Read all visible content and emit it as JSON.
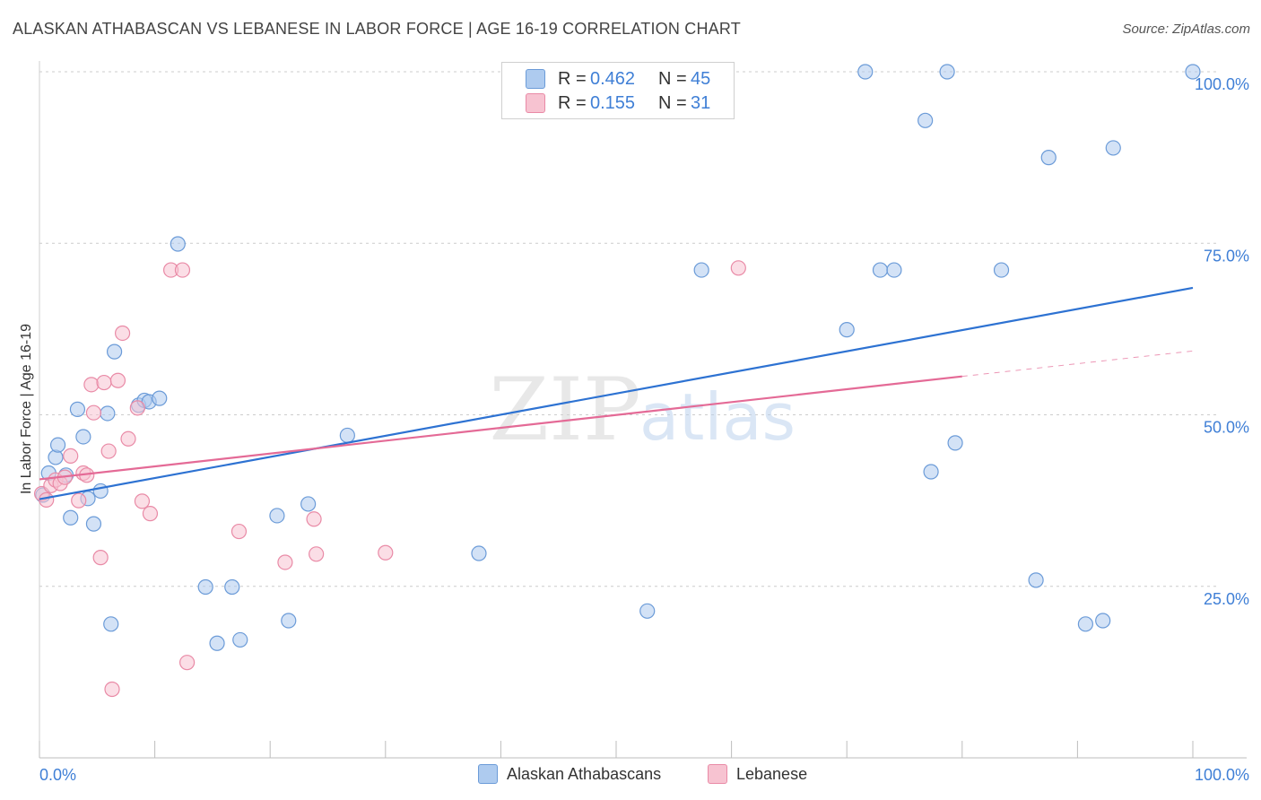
{
  "title": "ALASKAN ATHABASCAN VS LEBANESE IN LABOR FORCE | AGE 16-19 CORRELATION CHART",
  "source": "Source: ZipAtlas.com",
  "watermark_zip": "ZIP",
  "watermark_atlas": "atlas",
  "colors": {
    "blue_fill": "#aecbef",
    "blue_stroke": "#6b9bd8",
    "blue_line": "#2d72d2",
    "pink_fill": "#f7c3d1",
    "pink_stroke": "#e98aa6",
    "pink_line": "#e46a96",
    "value_text": "#3f7fd6",
    "grid": "#cccccc"
  },
  "legend_top": {
    "rows": [
      {
        "r_label": "R =",
        "r_value": "0.462",
        "n_label": "N =",
        "n_value": "45"
      },
      {
        "r_label": "R =",
        "r_value": "0.155",
        "n_label": "N =",
        "n_value": "31"
      }
    ]
  },
  "legend_bottom": {
    "series1": "Alaskan Athabascans",
    "series2": "Lebanese"
  },
  "chart_data": {
    "type": "scatter",
    "title": "ALASKAN ATHABASCAN VS LEBANESE IN LABOR FORCE | AGE 16-19 CORRELATION CHART",
    "xlabel": "",
    "ylabel": "In Labor Force | Age 16-19",
    "xlim": [
      0,
      100
    ],
    "ylim": [
      0,
      100
    ],
    "x_tick_labels": [
      "0.0%",
      "100.0%"
    ],
    "y_tick_labels": [
      "25.0%",
      "50.0%",
      "75.0%",
      "100.0%"
    ],
    "y_ticks": [
      25,
      50,
      75,
      100
    ],
    "series": [
      {
        "name": "Alaskan Athabascans",
        "R": 0.462,
        "N": 45,
        "trend": {
          "x0": 0,
          "y0": 37.7,
          "x1": 100,
          "y1": 68.5
        },
        "points": [
          [
            0.3,
            38.3
          ],
          [
            0.8,
            41.5
          ],
          [
            1.4,
            43.8
          ],
          [
            1.6,
            45.6
          ],
          [
            2.3,
            41.2
          ],
          [
            2.7,
            35.0
          ],
          [
            3.3,
            50.8
          ],
          [
            3.8,
            46.8
          ],
          [
            4.2,
            37.8
          ],
          [
            4.7,
            34.1
          ],
          [
            5.3,
            38.9
          ],
          [
            5.9,
            50.2
          ],
          [
            6.2,
            19.5
          ],
          [
            6.5,
            59.2
          ],
          [
            8.6,
            51.4
          ],
          [
            9.1,
            52.1
          ],
          [
            9.5,
            51.9
          ],
          [
            10.4,
            52.4
          ],
          [
            12.0,
            74.9
          ],
          [
            14.4,
            24.9
          ],
          [
            15.4,
            16.7
          ],
          [
            16.7,
            24.9
          ],
          [
            17.4,
            17.2
          ],
          [
            20.6,
            35.3
          ],
          [
            21.6,
            20.0
          ],
          [
            23.3,
            37.0
          ],
          [
            26.7,
            47.0
          ],
          [
            38.1,
            29.8
          ],
          [
            52.7,
            21.4
          ],
          [
            57.4,
            71.1
          ],
          [
            70.0,
            62.4
          ],
          [
            71.6,
            100.0
          ],
          [
            72.9,
            71.1
          ],
          [
            74.1,
            71.1
          ],
          [
            76.8,
            92.9
          ],
          [
            77.3,
            41.7
          ],
          [
            78.7,
            100.0
          ],
          [
            79.4,
            45.9
          ],
          [
            83.4,
            71.1
          ],
          [
            86.4,
            25.9
          ],
          [
            87.5,
            87.5
          ],
          [
            90.7,
            19.5
          ],
          [
            92.2,
            20.0
          ],
          [
            93.1,
            88.9
          ],
          [
            100.0,
            100.0
          ]
        ]
      },
      {
        "name": "Lebanese",
        "R": 0.155,
        "N": 31,
        "trend": {
          "x0": 0,
          "y0": 40.6,
          "x1": 80,
          "y1": 55.6
        },
        "trend_dashed": {
          "x0": 80,
          "y0": 55.6,
          "x1": 100,
          "y1": 59.3
        },
        "points": [
          [
            0.2,
            38.5
          ],
          [
            0.6,
            37.6
          ],
          [
            1.0,
            39.7
          ],
          [
            1.4,
            40.5
          ],
          [
            1.8,
            40.0
          ],
          [
            2.2,
            40.9
          ],
          [
            2.7,
            44.0
          ],
          [
            3.4,
            37.5
          ],
          [
            3.8,
            41.5
          ],
          [
            4.1,
            41.2
          ],
          [
            4.5,
            54.4
          ],
          [
            4.7,
            50.3
          ],
          [
            5.3,
            29.2
          ],
          [
            5.6,
            54.7
          ],
          [
            6.0,
            44.7
          ],
          [
            6.3,
            10.0
          ],
          [
            6.8,
            55.0
          ],
          [
            7.2,
            61.9
          ],
          [
            7.7,
            46.5
          ],
          [
            8.5,
            51.0
          ],
          [
            8.9,
            37.4
          ],
          [
            9.6,
            35.6
          ],
          [
            11.4,
            71.1
          ],
          [
            12.4,
            71.1
          ],
          [
            12.8,
            13.9
          ],
          [
            17.3,
            33.0
          ],
          [
            21.3,
            28.5
          ],
          [
            23.8,
            34.8
          ],
          [
            24.0,
            29.7
          ],
          [
            30.0,
            29.9
          ],
          [
            60.6,
            71.4
          ]
        ]
      }
    ]
  }
}
